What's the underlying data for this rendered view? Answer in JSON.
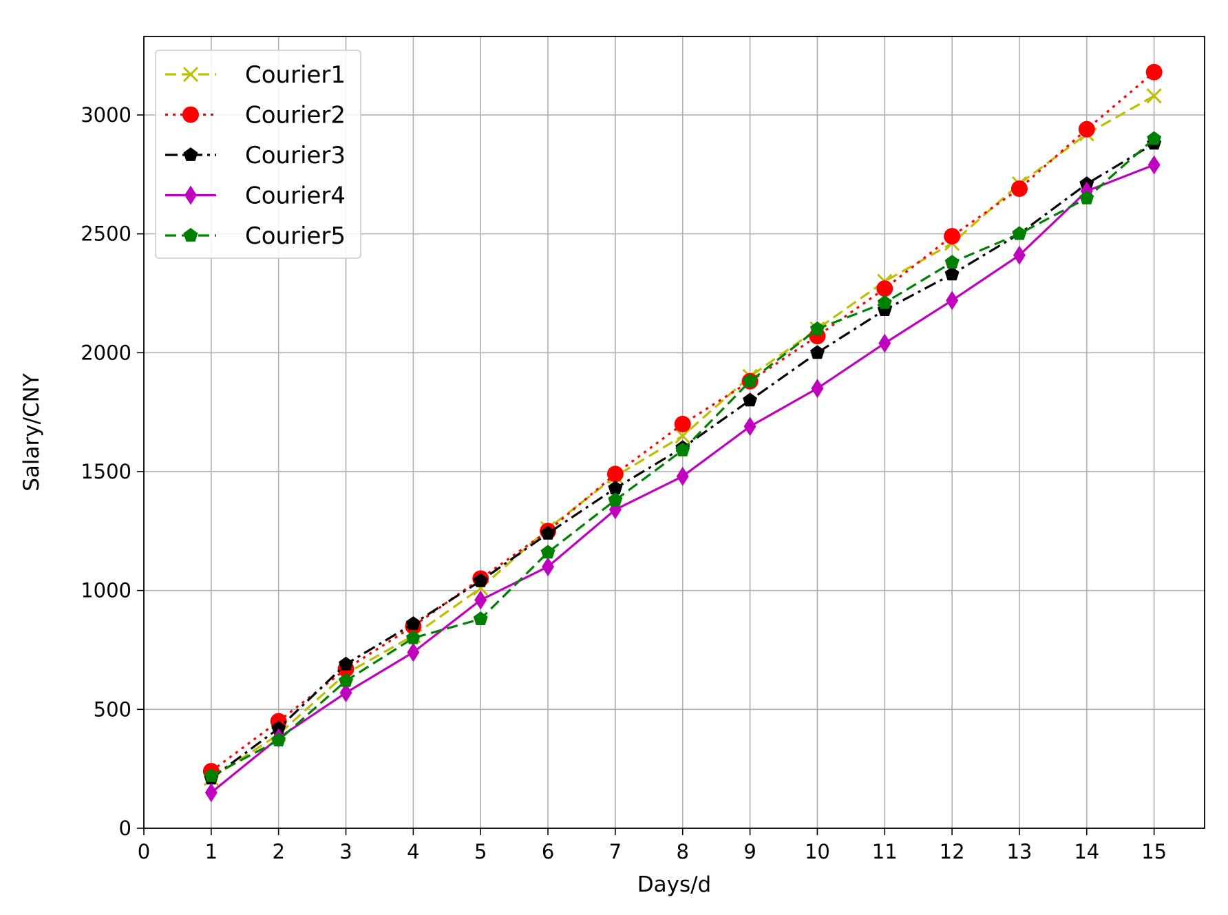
{
  "chart_data": {
    "type": "line",
    "xlabel": "Days/d",
    "ylabel": "Salary/CNY",
    "xlim": [
      0,
      15.75
    ],
    "ylim": [
      0,
      3330
    ],
    "xticks": [
      0,
      1,
      2,
      3,
      4,
      5,
      6,
      7,
      8,
      9,
      10,
      11,
      12,
      13,
      14,
      15
    ],
    "yticks": [
      0,
      500,
      1000,
      1500,
      2000,
      2500,
      3000
    ],
    "grid": true,
    "legend_position": "upper-left",
    "x": [
      1,
      2,
      3,
      4,
      5,
      6,
      7,
      8,
      9,
      10,
      11,
      12,
      13,
      14,
      15
    ],
    "series": [
      {
        "name": "Courier1",
        "color": "#bfbf00",
        "marker": "x",
        "linestyle": "dashed",
        "values": [
          210,
          395,
          650,
          810,
          1010,
          1260,
          1480,
          1650,
          1900,
          2100,
          2300,
          2460,
          2710,
          2920,
          3080
        ]
      },
      {
        "name": "Courier2",
        "color": "#ff0000",
        "marker": "circle",
        "linestyle": "dotted",
        "values": [
          240,
          450,
          670,
          850,
          1050,
          1250,
          1490,
          1700,
          1880,
          2070,
          2270,
          2490,
          2690,
          2940,
          3180
        ]
      },
      {
        "name": "Courier3",
        "color": "#000000",
        "marker": "pentagon",
        "linestyle": "dashdot",
        "values": [
          210,
          420,
          690,
          860,
          1040,
          1240,
          1430,
          1600,
          1800,
          2000,
          2180,
          2330,
          2500,
          2710,
          2880
        ]
      },
      {
        "name": "Courier4",
        "color": "#bf00bf",
        "marker": "thin_diamond",
        "linestyle": "solid",
        "values": [
          150,
          380,
          570,
          740,
          960,
          1100,
          1340,
          1480,
          1690,
          1850,
          2040,
          2220,
          2410,
          2680,
          2790
        ]
      },
      {
        "name": "Courier5",
        "color": "#008000",
        "marker": "pentagon",
        "linestyle": "dashed",
        "values": [
          220,
          370,
          620,
          800,
          880,
          1160,
          1380,
          1590,
          1880,
          2100,
          2210,
          2380,
          2500,
          2650,
          2900
        ]
      }
    ]
  }
}
